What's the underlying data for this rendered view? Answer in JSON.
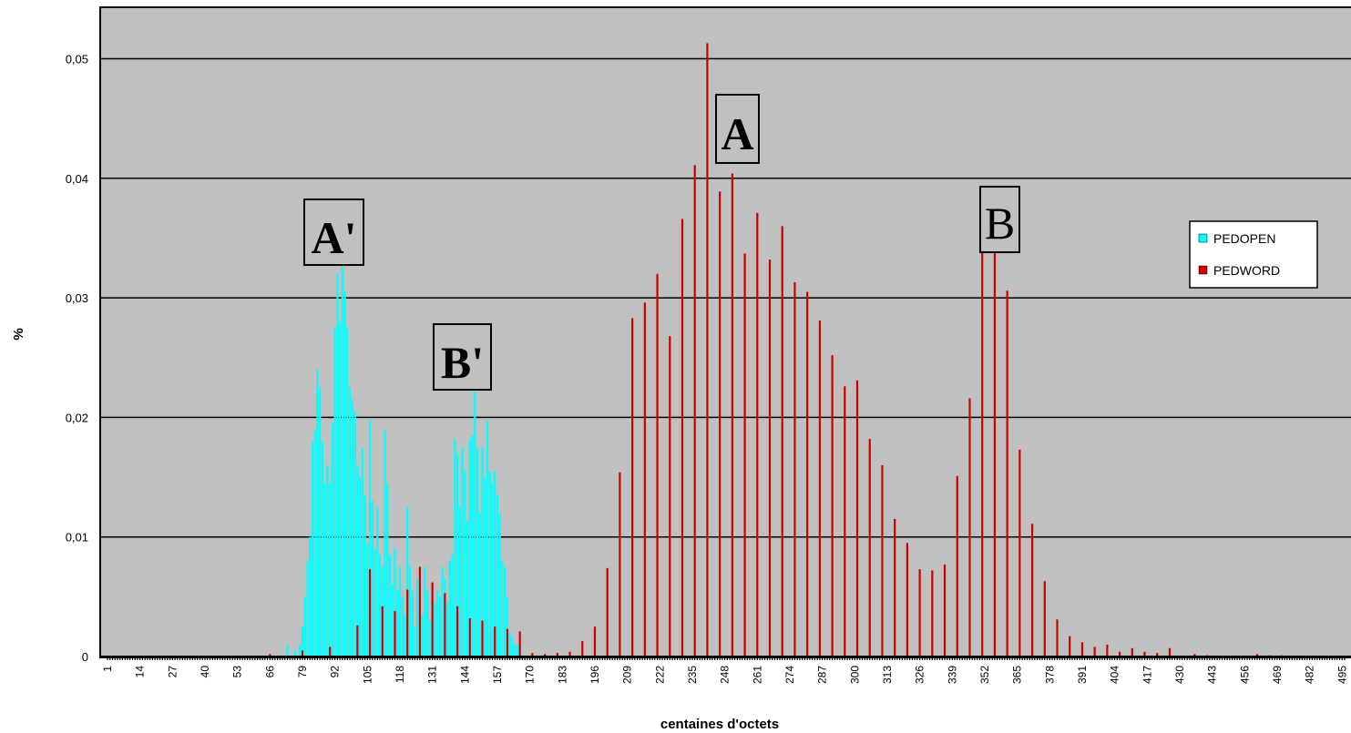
{
  "chart_data": {
    "type": "bar",
    "xlabel": "centaines d'octets",
    "ylabel": "%",
    "ylim": [
      0,
      0.0543
    ],
    "xlim": [
      1,
      496
    ],
    "y_ticks": [
      {
        "value": 0,
        "label": "0"
      },
      {
        "value": 0.01,
        "label": "0,01"
      },
      {
        "value": 0.02,
        "label": "0,02"
      },
      {
        "value": 0.03,
        "label": "0,03"
      },
      {
        "value": 0.04,
        "label": "0,04"
      },
      {
        "value": 0.05,
        "label": "0,05"
      }
    ],
    "x_ticks": [
      "1",
      "14",
      "27",
      "40",
      "53",
      "66",
      "79",
      "92",
      "105",
      "118",
      "131",
      "144",
      "157",
      "170",
      "183",
      "196",
      "209",
      "222",
      "235",
      "248",
      "261",
      "274",
      "287",
      "300",
      "313",
      "326",
      "339",
      "352",
      "365",
      "378",
      "391",
      "404",
      "417",
      "430",
      "443",
      "456",
      "469",
      "482",
      "495"
    ],
    "grid": true,
    "legend_position": "right",
    "series": [
      {
        "name": "PEDOPEN",
        "color": "#00ffff",
        "points": [
          [
            73,
            0.001
          ],
          [
            76,
            0.0005
          ],
          [
            78,
            0.001
          ],
          [
            79,
            0.0025
          ],
          [
            80,
            0.005
          ],
          [
            81,
            0.008
          ],
          [
            82,
            0.01
          ],
          [
            83,
            0.018
          ],
          [
            84,
            0.019
          ],
          [
            85,
            0.024
          ],
          [
            86,
            0.0225
          ],
          [
            87,
            0.018
          ],
          [
            88,
            0.0145
          ],
          [
            89,
            0.016
          ],
          [
            90,
            0.0145
          ],
          [
            91,
            0.0195
          ],
          [
            92,
            0.0275
          ],
          [
            93,
            0.032
          ],
          [
            94,
            0.028
          ],
          [
            95,
            0.033
          ],
          [
            96,
            0.0305
          ],
          [
            97,
            0.0275
          ],
          [
            98,
            0.0225
          ],
          [
            99,
            0.0215
          ],
          [
            100,
            0.0205
          ],
          [
            101,
            0.016
          ],
          [
            102,
            0.015
          ],
          [
            103,
            0.0175
          ],
          [
            104,
            0.0135
          ],
          [
            105,
            0.0095
          ],
          [
            106,
            0.0198
          ],
          [
            107,
            0.013
          ],
          [
            108,
            0.009
          ],
          [
            109,
            0.0125
          ],
          [
            110,
            0.0085
          ],
          [
            111,
            0.0075
          ],
          [
            112,
            0.0189
          ],
          [
            113,
            0.0145
          ],
          [
            114,
            0.0085
          ],
          [
            115,
            0.006
          ],
          [
            116,
            0.009
          ],
          [
            117,
            0.0055
          ],
          [
            118,
            0.0075
          ],
          [
            119,
            0.005
          ],
          [
            120,
            0.0035
          ],
          [
            121,
            0.0125
          ],
          [
            122,
            0.0075
          ],
          [
            123,
            0.0055
          ],
          [
            124,
            0.0025
          ],
          [
            125,
            0.0065
          ],
          [
            126,
            0.004
          ],
          [
            127,
            0.0035
          ],
          [
            128,
            0.0075
          ],
          [
            129,
            0.0055
          ],
          [
            130,
            0.003
          ],
          [
            131,
            0.0035
          ],
          [
            132,
            0.0045
          ],
          [
            133,
            0.0055
          ],
          [
            134,
            0.005
          ],
          [
            135,
            0.0075
          ],
          [
            136,
            0.0065
          ],
          [
            137,
            0.0045
          ],
          [
            138,
            0.008
          ],
          [
            139,
            0.0085
          ],
          [
            140,
            0.0182
          ],
          [
            141,
            0.017
          ],
          [
            142,
            0.0125
          ],
          [
            143,
            0.0175
          ],
          [
            144,
            0.0155
          ],
          [
            145,
            0.0113
          ],
          [
            146,
            0.0182
          ],
          [
            147,
            0.0185
          ],
          [
            148,
            0.0225
          ],
          [
            149,
            0.0175
          ],
          [
            150,
            0.012
          ],
          [
            151,
            0.0175
          ],
          [
            152,
            0.015
          ],
          [
            153,
            0.0197
          ],
          [
            154,
            0.0155
          ],
          [
            155,
            0.0145
          ],
          [
            156,
            0.0155
          ],
          [
            157,
            0.0135
          ],
          [
            158,
            0.012
          ],
          [
            159,
            0.008
          ],
          [
            160,
            0.0075
          ],
          [
            161,
            0.005
          ],
          [
            162,
            0.002
          ],
          [
            163,
            0.0015
          ],
          [
            164,
            0.001
          ],
          [
            165,
            0.001
          ]
        ]
      },
      {
        "name": "PEDWORD",
        "color": "#cc0000",
        "points": [
          [
            66,
            0.0002
          ],
          [
            79,
            0.0005
          ],
          [
            90,
            0.0008
          ],
          [
            101,
            0.0026
          ],
          [
            106,
            0.0073
          ],
          [
            111,
            0.0042
          ],
          [
            116,
            0.0038
          ],
          [
            121,
            0.0056
          ],
          [
            126,
            0.0075
          ],
          [
            131,
            0.0062
          ],
          [
            136,
            0.0053
          ],
          [
            141,
            0.0042
          ],
          [
            146,
            0.0032
          ],
          [
            151,
            0.003
          ],
          [
            156,
            0.0025
          ],
          [
            161,
            0.0023
          ],
          [
            166,
            0.0021
          ],
          [
            171,
            0.0003
          ],
          [
            176,
            0.0002
          ],
          [
            181,
            0.0003
          ],
          [
            186,
            0.0004
          ],
          [
            191,
            0.0013
          ],
          [
            196,
            0.0025
          ],
          [
            201,
            0.0074
          ],
          [
            206,
            0.0154
          ],
          [
            211,
            0.0283
          ],
          [
            216,
            0.0296
          ],
          [
            221,
            0.032
          ],
          [
            226,
            0.0268
          ],
          [
            231,
            0.0366
          ],
          [
            236,
            0.0411
          ],
          [
            241,
            0.0513
          ],
          [
            246,
            0.0389
          ],
          [
            251,
            0.0404
          ],
          [
            256,
            0.0337
          ],
          [
            261,
            0.0371
          ],
          [
            266,
            0.0332
          ],
          [
            271,
            0.036
          ],
          [
            276,
            0.0313
          ],
          [
            281,
            0.0305
          ],
          [
            286,
            0.0281
          ],
          [
            291,
            0.0252
          ],
          [
            296,
            0.0226
          ],
          [
            301,
            0.0231
          ],
          [
            306,
            0.0182
          ],
          [
            311,
            0.016
          ],
          [
            316,
            0.0115
          ],
          [
            321,
            0.0095
          ],
          [
            326,
            0.0073
          ],
          [
            331,
            0.0072
          ],
          [
            336,
            0.0077
          ],
          [
            341,
            0.0151
          ],
          [
            346,
            0.0216
          ],
          [
            351,
            0.0339
          ],
          [
            356,
            0.0346
          ],
          [
            361,
            0.0306
          ],
          [
            366,
            0.0173
          ],
          [
            371,
            0.0111
          ],
          [
            376,
            0.0063
          ],
          [
            381,
            0.0031
          ],
          [
            386,
            0.0017
          ],
          [
            391,
            0.0012
          ],
          [
            396,
            0.0008
          ],
          [
            401,
            0.001
          ],
          [
            406,
            0.0004
          ],
          [
            411,
            0.0007
          ],
          [
            416,
            0.0004
          ],
          [
            421,
            0.0003
          ],
          [
            426,
            0.0007
          ],
          [
            436,
            0.0002
          ],
          [
            441,
            0.0001
          ],
          [
            461,
            0.0002
          ],
          [
            466,
            0.0001
          ],
          [
            471,
            0.0001
          ]
        ]
      }
    ],
    "annotations": [
      {
        "label": "A",
        "style": "bold"
      },
      {
        "label": "B",
        "style": "normal"
      },
      {
        "label": "A'",
        "style": "bold"
      },
      {
        "label": "B'",
        "style": "bold"
      }
    ]
  },
  "colors": {
    "plot_background": "#c0c0c0",
    "pedopen": "#00ffff",
    "pedword": "#cc0000",
    "gridline": "#000000"
  }
}
